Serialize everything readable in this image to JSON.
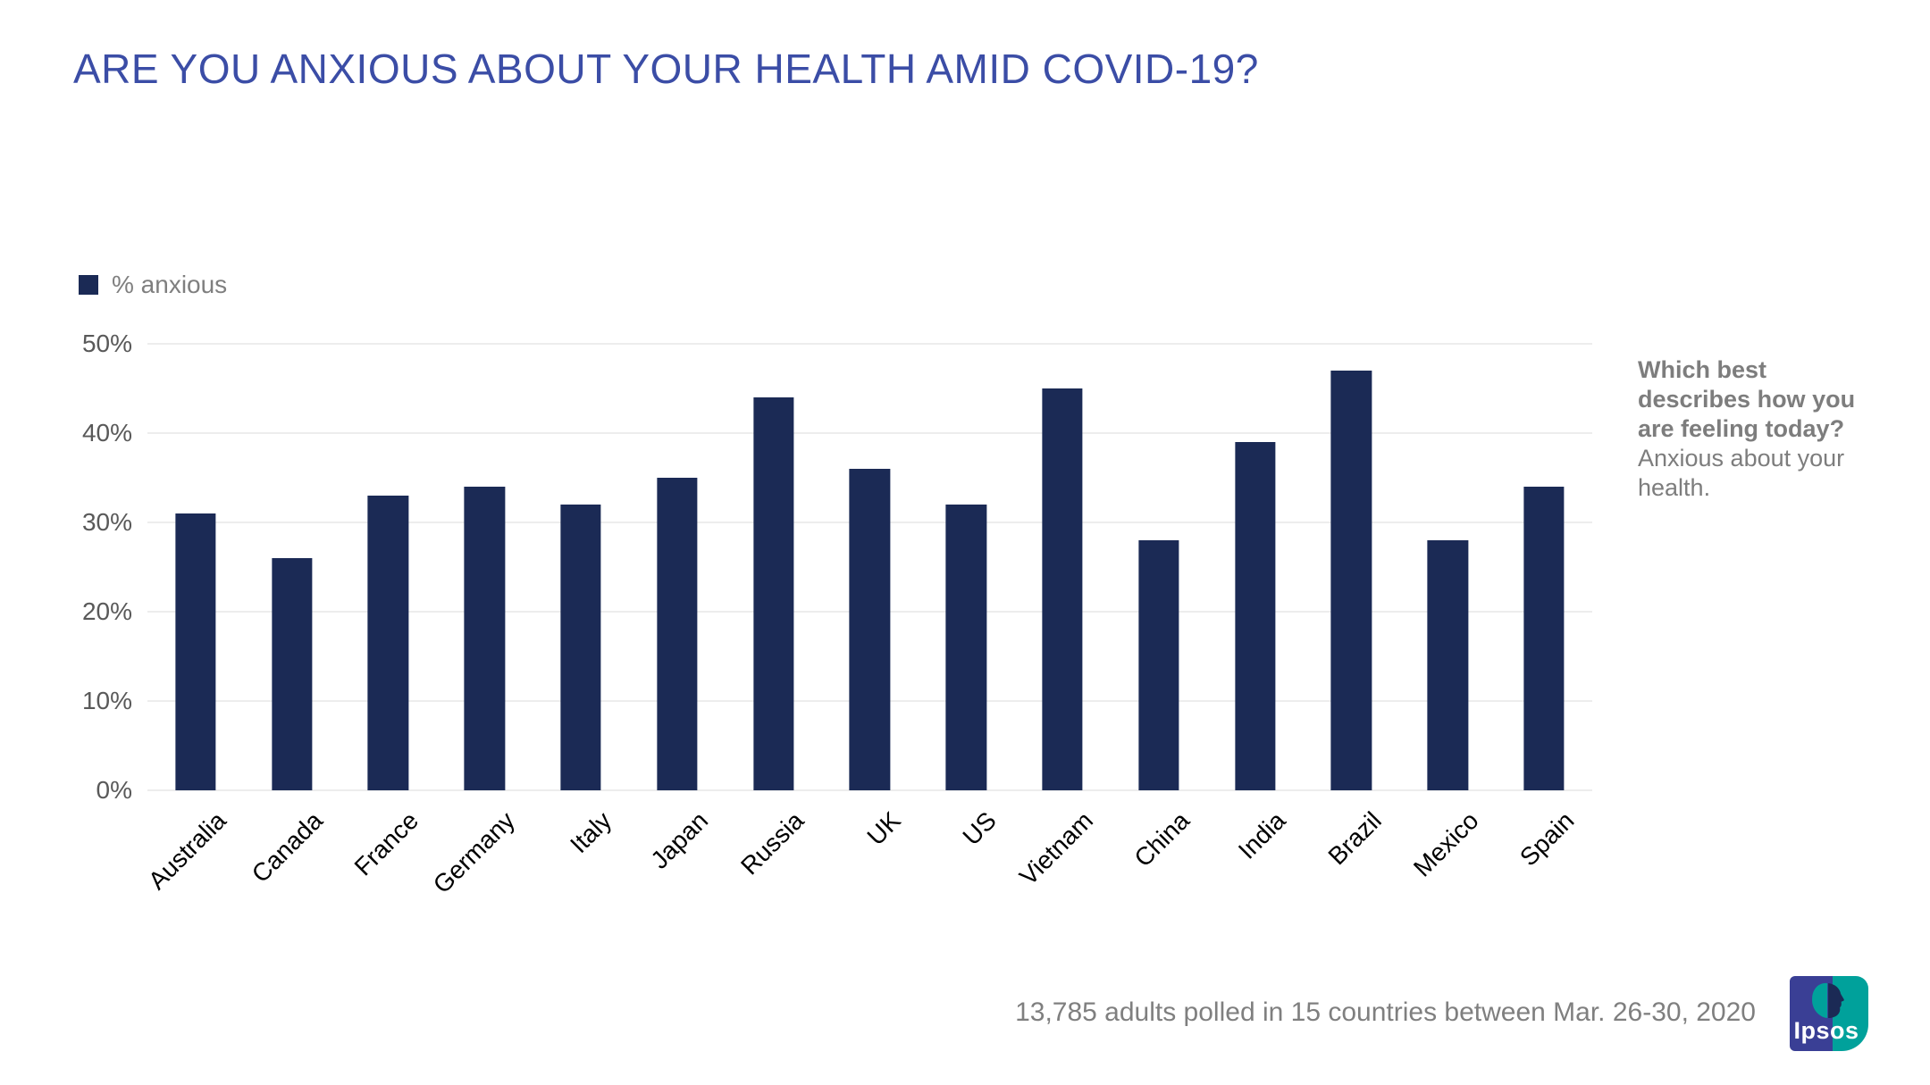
{
  "title": {
    "text": "ARE YOU ANXIOUS ABOUT YOUR HEALTH AMID COVID-19?",
    "color": "#3b4da6"
  },
  "legend": {
    "label": "% anxious",
    "swatch_color": "#1b2a55"
  },
  "chart_data": {
    "type": "bar",
    "title": "ARE YOU ANXIOUS ABOUT YOUR HEALTH AMID COVID-19?",
    "categories": [
      "Australia",
      "Canada",
      "France",
      "Germany",
      "Italy",
      "Japan",
      "Russia",
      "UK",
      "US",
      "Vietnam",
      "China",
      "India",
      "Brazil",
      "Mexico",
      "Spain"
    ],
    "series": [
      {
        "name": "% anxious",
        "values": [
          31,
          26,
          33,
          34,
          32,
          35,
          44,
          36,
          32,
          45,
          28,
          39,
          47,
          28,
          34
        ]
      }
    ],
    "xlabel": "",
    "ylabel": "",
    "ylim": [
      0,
      50
    ],
    "y_ticks": [
      {
        "value": 0,
        "label": "0%"
      },
      {
        "value": 10,
        "label": "10%"
      },
      {
        "value": 20,
        "label": "20%"
      },
      {
        "value": 30,
        "label": "30%"
      },
      {
        "value": 40,
        "label": "40%"
      },
      {
        "value": 50,
        "label": "50%"
      }
    ],
    "grid": true,
    "legend_position": "top-left",
    "bar_color": "#1b2a55"
  },
  "annotation": {
    "bold_lines": [
      "Which best",
      "describes how you",
      "are feeling today?"
    ],
    "regular_lines": [
      "Anxious about your",
      "health."
    ]
  },
  "footnote": {
    "text": "13,785 adults polled in 15 countries between Mar. 26-30, 2020"
  },
  "logo": {
    "text": "Ipsos",
    "left_color": "#3a3f95",
    "right_color": "#00a19b",
    "silhouette_color": "#1b2a55",
    "head_curl_color": "#00a19b"
  }
}
